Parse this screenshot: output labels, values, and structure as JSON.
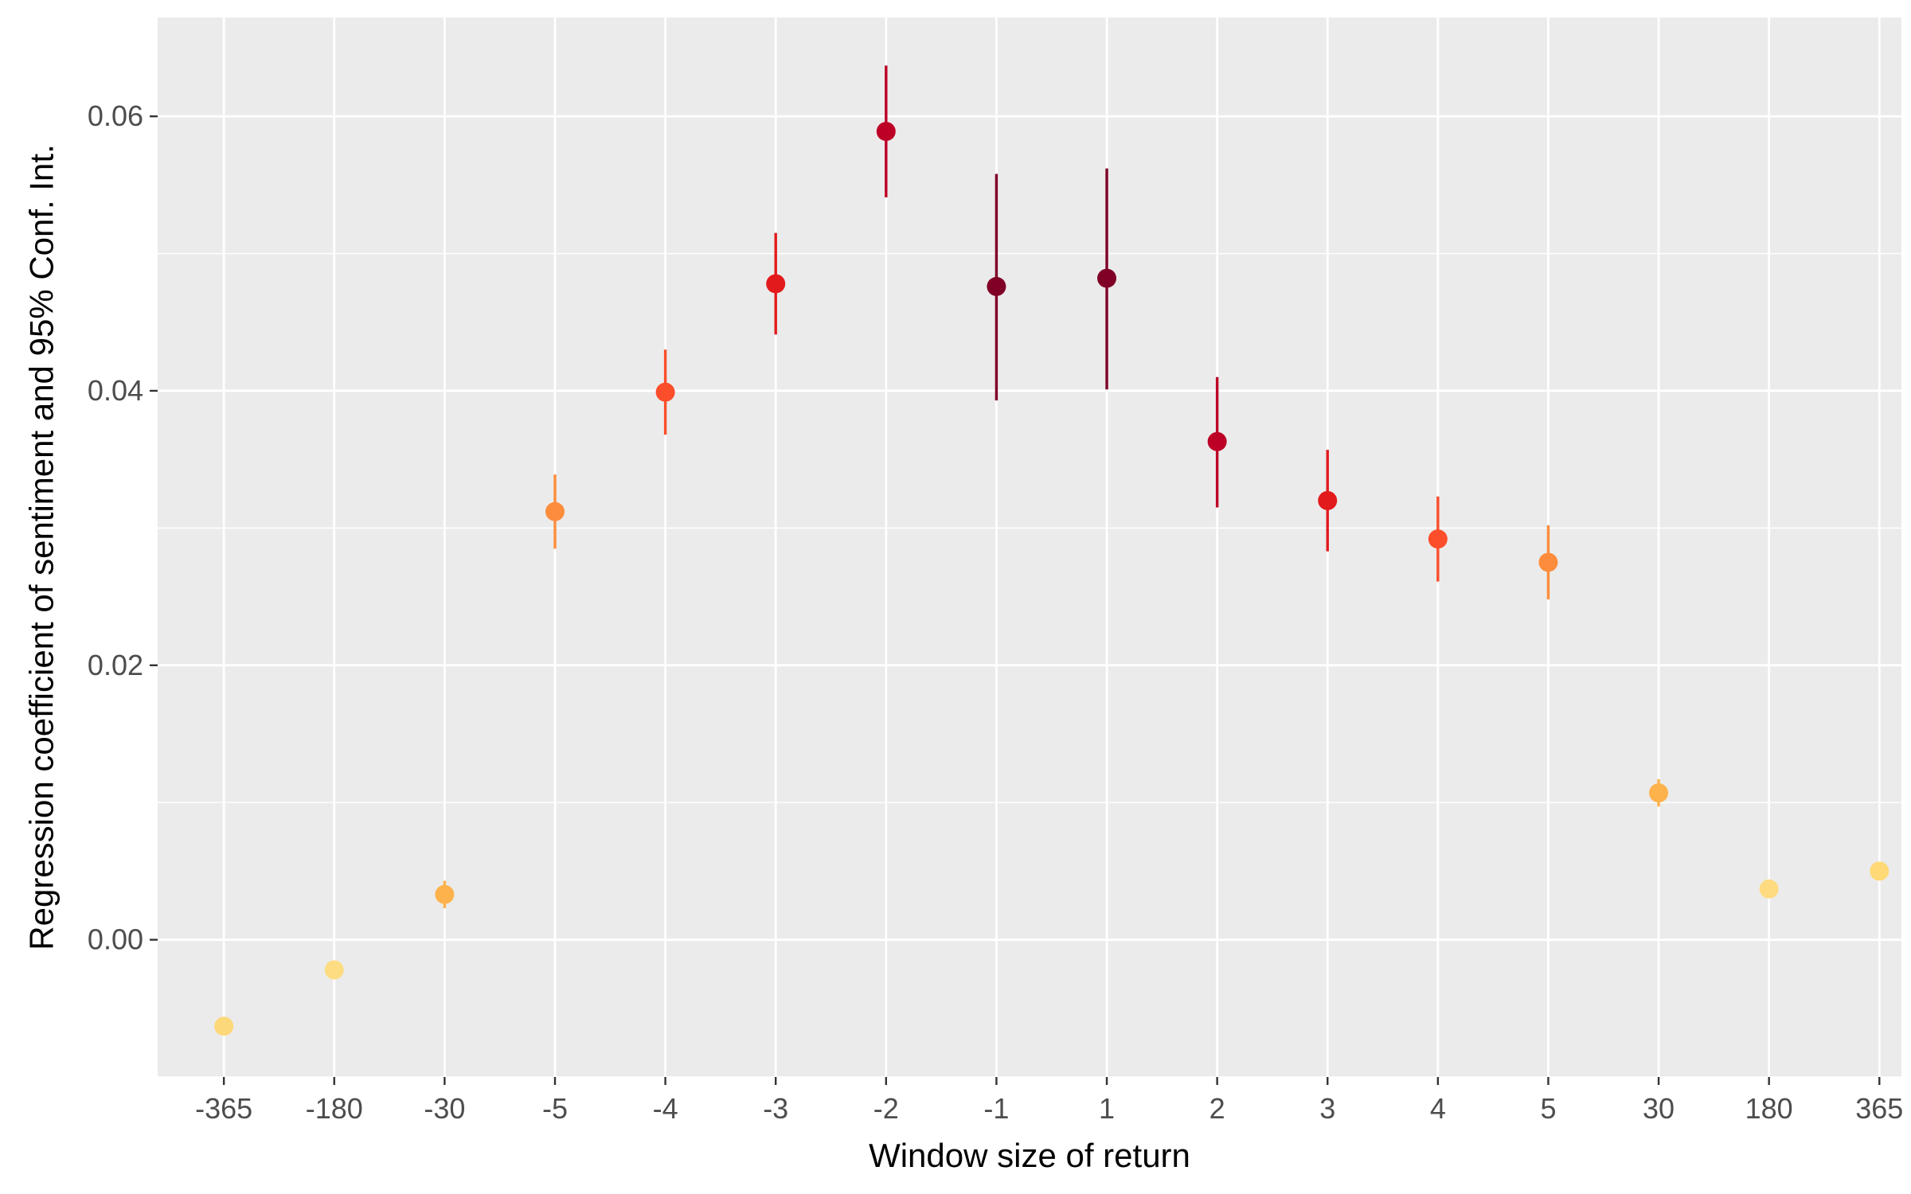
{
  "chart_data": {
    "type": "scatter",
    "xlabel": "Window size of return",
    "ylabel": "Regression coefficient of sentiment and 95% Conf. Int.",
    "x_categories": [
      "-365",
      "-180",
      "-30",
      "-5",
      "-4",
      "-3",
      "-2",
      "-1",
      "1",
      "2",
      "3",
      "4",
      "5",
      "30",
      "180",
      "365"
    ],
    "y_ticks": [
      "0.00",
      "0.02",
      "0.04",
      "0.06"
    ],
    "y_tick_values": [
      0.0,
      0.02,
      0.04,
      0.06
    ],
    "ylim": [
      -0.01,
      0.0672
    ],
    "grid": true,
    "legend": "none",
    "points": [
      {
        "x": "-365",
        "y": -0.0063,
        "ci_low": -0.0063,
        "ci_high": -0.0063,
        "color": "#fdd87a"
      },
      {
        "x": "-180",
        "y": -0.0022,
        "ci_low": -0.0022,
        "ci_high": -0.0022,
        "color": "#fddc82"
      },
      {
        "x": "-30",
        "y": 0.0033,
        "ci_low": 0.0023,
        "ci_high": 0.0043,
        "color": "#fdb24c"
      },
      {
        "x": "-5",
        "y": 0.0312,
        "ci_low": 0.0285,
        "ci_high": 0.0339,
        "color": "#fd8d3c"
      },
      {
        "x": "-4",
        "y": 0.0399,
        "ci_low": 0.0368,
        "ci_high": 0.043,
        "color": "#fc4e2a"
      },
      {
        "x": "-3",
        "y": 0.0478,
        "ci_low": 0.0441,
        "ci_high": 0.0515,
        "color": "#e31a1c"
      },
      {
        "x": "-2",
        "y": 0.0589,
        "ci_low": 0.0541,
        "ci_high": 0.0637,
        "color": "#bd0026"
      },
      {
        "x": "-1",
        "y": 0.0476,
        "ci_low": 0.0393,
        "ci_high": 0.0558,
        "color": "#800026"
      },
      {
        "x": "1",
        "y": 0.0482,
        "ci_low": 0.0401,
        "ci_high": 0.0562,
        "color": "#800026"
      },
      {
        "x": "2",
        "y": 0.0363,
        "ci_low": 0.0315,
        "ci_high": 0.041,
        "color": "#bd0026"
      },
      {
        "x": "3",
        "y": 0.032,
        "ci_low": 0.0283,
        "ci_high": 0.0357,
        "color": "#e31a1c"
      },
      {
        "x": "4",
        "y": 0.0292,
        "ci_low": 0.0261,
        "ci_high": 0.0323,
        "color": "#fc4e2a"
      },
      {
        "x": "5",
        "y": 0.0275,
        "ci_low": 0.0248,
        "ci_high": 0.0302,
        "color": "#fd8d3c"
      },
      {
        "x": "30",
        "y": 0.0107,
        "ci_low": 0.0097,
        "ci_high": 0.0117,
        "color": "#feb24c"
      },
      {
        "x": "180",
        "y": 0.0037,
        "ci_low": 0.0037,
        "ci_high": 0.0037,
        "color": "#fedb80"
      },
      {
        "x": "365",
        "y": 0.005,
        "ci_low": 0.005,
        "ci_high": 0.005,
        "color": "#fed976"
      }
    ],
    "colors": {
      "panel_background": "#ebebeb",
      "grid_major": "#ffffff",
      "tick_mark": "#333333"
    }
  }
}
